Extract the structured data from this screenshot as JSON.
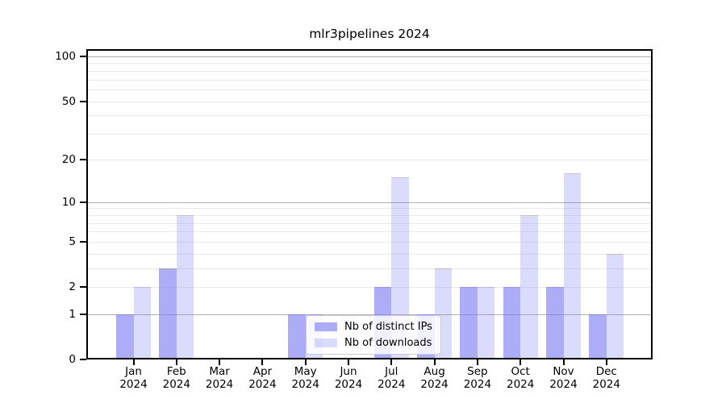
{
  "figure": {
    "title": "mlr3pipelines 2024"
  },
  "chart_data": {
    "type": "bar",
    "title": "mlr3pipelines 2024",
    "categories": [
      "Jan 2024",
      "Feb 2024",
      "Mar 2024",
      "Apr 2024",
      "May 2024",
      "Jun 2024",
      "Jul 2024",
      "Aug 2024",
      "Sep 2024",
      "Oct 2024",
      "Nov 2024",
      "Dec 2024"
    ],
    "month_labels": [
      "Jan",
      "Feb",
      "Mar",
      "Apr",
      "May",
      "Jun",
      "Jul",
      "Aug",
      "Sep",
      "Oct",
      "Nov",
      "Dec"
    ],
    "year_label": "2024",
    "series": [
      {
        "name": "Nb of distinct IPs",
        "values": [
          1,
          3,
          0,
          0,
          1,
          0,
          2,
          1,
          2,
          2,
          2,
          1
        ],
        "color": "rgba(122,122,242,0.62)"
      },
      {
        "name": "Nb of downloads",
        "values": [
          2,
          8,
          0,
          0,
          1,
          0,
          15,
          3,
          2,
          8,
          16,
          4
        ],
        "color": "rgba(122,122,242,0.27)"
      }
    ],
    "xlabel": "",
    "ylabel": "",
    "yscale": "log1p",
    "ylim": [
      0,
      112
    ],
    "y_ticks": [
      0,
      1,
      2,
      5,
      10,
      20,
      50,
      100
    ],
    "gridlines": {
      "major": [
        1,
        10,
        100
      ],
      "minor": [
        2,
        3,
        4,
        5,
        6,
        7,
        8,
        9,
        20,
        30,
        40,
        50,
        60,
        70,
        80,
        90
      ],
      "grid_on": true
    },
    "legend": {
      "position": "lower center",
      "items": [
        "Nb of distinct IPs",
        "Nb of downloads"
      ]
    }
  },
  "colors": {
    "bar_distinct_ips": "rgba(122,122,242,0.62)",
    "bar_downloads": "rgba(122,122,242,0.27)",
    "major_grid": "#b0b0b0",
    "minor_grid": "#e9e9e9",
    "axis_frame": "#000000",
    "legend_border": "#cccccc"
  }
}
